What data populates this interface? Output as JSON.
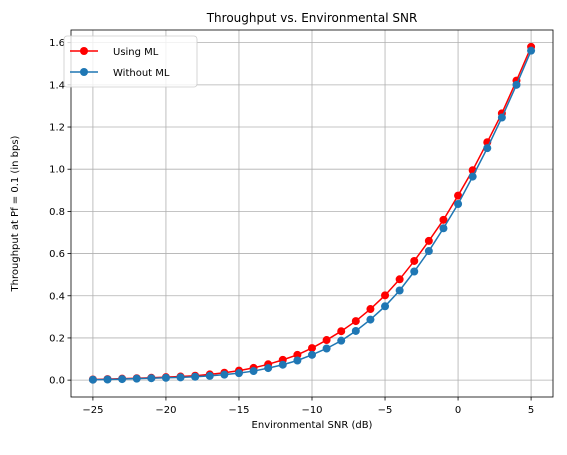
{
  "chart_data": {
    "type": "line",
    "title": "Throughput vs. Environmental SNR",
    "xlabel": "Environmental SNR (dB)",
    "ylabel": "Throughput at Pf = 0.1 (in bps)",
    "xlim": [
      -26.5,
      6.5
    ],
    "ylim": [
      -0.08,
      1.66
    ],
    "xticks": [
      -25,
      -20,
      -15,
      -10,
      -5,
      0,
      5
    ],
    "xtick_labels": [
      "−25",
      "−20",
      "−15",
      "−10",
      "−5",
      "0",
      "5"
    ],
    "yticks": [
      0.0,
      0.2,
      0.4,
      0.6,
      0.8,
      1.0,
      1.2,
      1.4,
      1.6
    ],
    "ytick_labels": [
      "0.0",
      "0.2",
      "0.4",
      "0.6",
      "0.8",
      "1.0",
      "1.2",
      "1.4",
      "1.6"
    ],
    "grid": true,
    "legend_position": "top-left",
    "x": [
      -25,
      -24,
      -23,
      -22,
      -21,
      -20,
      -19,
      -18,
      -17,
      -16,
      -15,
      -14,
      -13,
      -12,
      -11,
      -10,
      -9,
      -8,
      -7,
      -6,
      -5,
      -4,
      -3,
      -2,
      -1,
      0,
      1,
      2,
      3,
      4,
      5
    ],
    "series": [
      {
        "name": "Using ML",
        "color": "#ff0000",
        "marker": "circle",
        "values": [
          0.003,
          0.005,
          0.007,
          0.009,
          0.011,
          0.014,
          0.017,
          0.021,
          0.027,
          0.035,
          0.045,
          0.058,
          0.075,
          0.096,
          0.12,
          0.152,
          0.19,
          0.232,
          0.28,
          0.337,
          0.402,
          0.478,
          0.565,
          0.66,
          0.76,
          0.875,
          0.995,
          1.128,
          1.265,
          1.42,
          1.58
        ]
      },
      {
        "name": "Without ML",
        "color": "#1f77b4",
        "marker": "circle",
        "values": [
          0.002,
          0.003,
          0.005,
          0.007,
          0.009,
          0.011,
          0.013,
          0.016,
          0.02,
          0.026,
          0.033,
          0.043,
          0.057,
          0.073,
          0.093,
          0.12,
          0.15,
          0.187,
          0.233,
          0.287,
          0.35,
          0.425,
          0.515,
          0.612,
          0.72,
          0.835,
          0.965,
          1.1,
          1.245,
          1.4,
          1.562
        ]
      }
    ]
  }
}
